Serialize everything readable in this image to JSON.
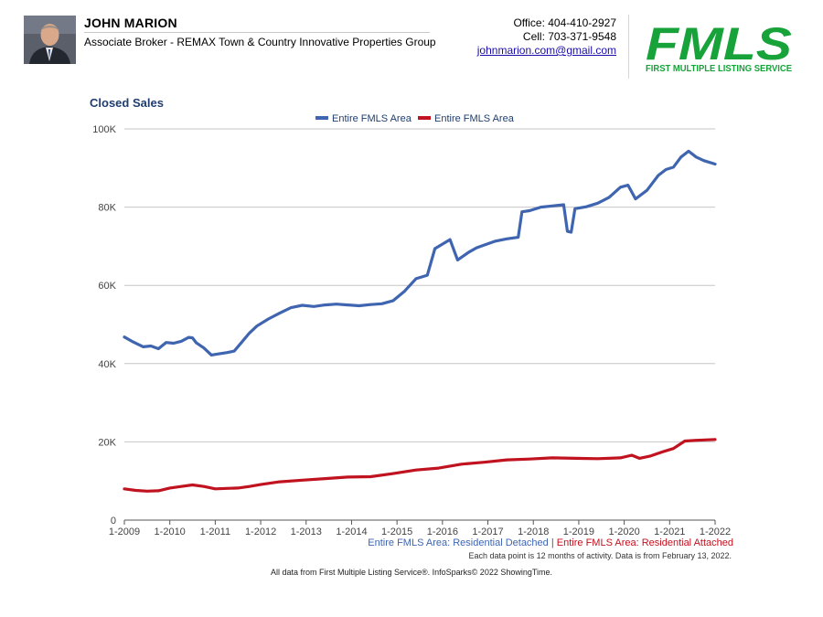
{
  "header": {
    "agent_name": "JOHN MARION",
    "agent_title": "Associate Broker - REMAX Town & Country Innovative Properties Group",
    "office": "Office: 404-410-2927",
    "cell": "Cell: 703-371-9548",
    "email": "johnmarion.com@gmail.com"
  },
  "logo": {
    "text": "FMLS",
    "subtitle": "FIRST MULTIPLE LISTING SERVICE",
    "color": "#17a23a"
  },
  "chart_data": {
    "type": "line",
    "title": "Closed Sales",
    "xlabel": "",
    "ylabel": "",
    "x_ticks": [
      "1-2009",
      "1-2010",
      "1-2011",
      "1-2012",
      "1-2013",
      "1-2014",
      "1-2015",
      "1-2016",
      "1-2017",
      "1-2018",
      "1-2019",
      "1-2020",
      "1-2021",
      "1-2022"
    ],
    "y_ticks": [
      "0",
      "20K",
      "40K",
      "60K",
      "80K",
      "100K"
    ],
    "ylim": [
      0,
      100000
    ],
    "xlim": [
      "2009-01",
      "2022-01"
    ],
    "grid": true,
    "legend": "top-center",
    "series": [
      {
        "name": "Entire FMLS Area",
        "color": "#3f65b0",
        "points": [
          [
            "2009-01",
            46800
          ],
          [
            "2009-03",
            45700
          ],
          [
            "2009-06",
            44300
          ],
          [
            "2009-08",
            44500
          ],
          [
            "2009-10",
            43800
          ],
          [
            "2009-12",
            45400
          ],
          [
            "2010-02",
            45200
          ],
          [
            "2010-04",
            45700
          ],
          [
            "2010-06",
            46700
          ],
          [
            "2010-07",
            46600
          ],
          [
            "2010-08",
            45300
          ],
          [
            "2010-10",
            44000
          ],
          [
            "2010-12",
            42200
          ],
          [
            "2011-02",
            42500
          ],
          [
            "2011-04",
            42800
          ],
          [
            "2011-06",
            43200
          ],
          [
            "2011-08",
            45500
          ],
          [
            "2011-10",
            47800
          ],
          [
            "2011-12",
            49600
          ],
          [
            "2012-03",
            51400
          ],
          [
            "2012-06",
            52900
          ],
          [
            "2012-09",
            54300
          ],
          [
            "2012-12",
            54900
          ],
          [
            "2013-03",
            54600
          ],
          [
            "2013-06",
            55000
          ],
          [
            "2013-09",
            55200
          ],
          [
            "2013-12",
            55000
          ],
          [
            "2014-03",
            54800
          ],
          [
            "2014-06",
            55100
          ],
          [
            "2014-09",
            55300
          ],
          [
            "2014-12",
            56100
          ],
          [
            "2015-03",
            58500
          ],
          [
            "2015-06",
            61700
          ],
          [
            "2015-09",
            62600
          ],
          [
            "2015-11",
            69400
          ],
          [
            "2016-03",
            71700
          ],
          [
            "2016-05",
            66500
          ],
          [
            "2016-08",
            68500
          ],
          [
            "2016-10",
            69600
          ],
          [
            "2016-12",
            70300
          ],
          [
            "2017-03",
            71300
          ],
          [
            "2017-06",
            71900
          ],
          [
            "2017-09",
            72300
          ],
          [
            "2017-10",
            78800
          ],
          [
            "2017-12",
            79100
          ],
          [
            "2018-03",
            80000
          ],
          [
            "2018-06",
            80300
          ],
          [
            "2018-09",
            80600
          ],
          [
            "2018-10",
            73800
          ],
          [
            "2018-11",
            73600
          ],
          [
            "2018-12",
            79600
          ],
          [
            "2019-03",
            80100
          ],
          [
            "2019-06",
            81000
          ],
          [
            "2019-09",
            82500
          ],
          [
            "2019-12",
            85100
          ],
          [
            "2020-02",
            85600
          ],
          [
            "2020-04",
            82100
          ],
          [
            "2020-07",
            84300
          ],
          [
            "2020-10",
            88100
          ],
          [
            "2020-12",
            89600
          ],
          [
            "2021-02",
            90200
          ],
          [
            "2021-04",
            92800
          ],
          [
            "2021-06",
            94300
          ],
          [
            "2021-08",
            92800
          ],
          [
            "2021-10",
            91900
          ],
          [
            "2022-01",
            91000
          ]
        ]
      },
      {
        "name": "Entire FMLS Area",
        "color": "#c0121f",
        "points": [
          [
            "2009-01",
            8000
          ],
          [
            "2009-04",
            7600
          ],
          [
            "2009-07",
            7400
          ],
          [
            "2009-10",
            7500
          ],
          [
            "2010-01",
            8200
          ],
          [
            "2010-04",
            8600
          ],
          [
            "2010-07",
            9000
          ],
          [
            "2010-10",
            8600
          ],
          [
            "2011-01",
            8000
          ],
          [
            "2011-04",
            8100
          ],
          [
            "2011-07",
            8200
          ],
          [
            "2011-10",
            8600
          ],
          [
            "2012-01",
            9100
          ],
          [
            "2012-06",
            9800
          ],
          [
            "2012-12",
            10200
          ],
          [
            "2013-06",
            10600
          ],
          [
            "2013-12",
            11000
          ],
          [
            "2014-06",
            11100
          ],
          [
            "2014-12",
            11900
          ],
          [
            "2015-06",
            12800
          ],
          [
            "2015-12",
            13300
          ],
          [
            "2016-06",
            14300
          ],
          [
            "2016-12",
            14800
          ],
          [
            "2017-06",
            15400
          ],
          [
            "2017-12",
            15600
          ],
          [
            "2018-06",
            15900
          ],
          [
            "2018-12",
            15800
          ],
          [
            "2019-06",
            15700
          ],
          [
            "2019-12",
            15900
          ],
          [
            "2020-03",
            16600
          ],
          [
            "2020-05",
            15800
          ],
          [
            "2020-08",
            16400
          ],
          [
            "2020-11",
            17400
          ],
          [
            "2021-02",
            18300
          ],
          [
            "2021-05",
            20200
          ],
          [
            "2021-08",
            20400
          ],
          [
            "2022-01",
            20600
          ]
        ]
      }
    ]
  },
  "footer": {
    "series_label_blue": "Entire FMLS Area: Residential Detached",
    "separator": "|",
    "series_label_red": "Entire FMLS Area: Residential Attached",
    "note": "Each data point is 12 months of activity. Data is from February 13, 2022.",
    "credit": "All data from First Multiple Listing Service®. InfoSparks© 2022 ShowingTime."
  }
}
